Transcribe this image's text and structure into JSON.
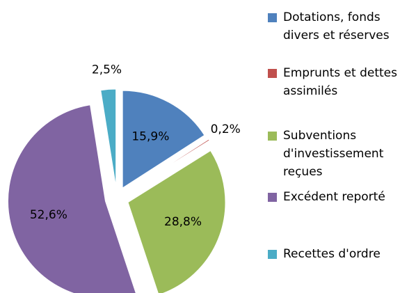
{
  "chart_data": {
    "type": "pie",
    "categories": [
      "Dotations, fonds divers et réserves",
      "Emprunts et dettes assimilés",
      "Subventions d'investissement reçues",
      "Excédent reporté",
      "Recettes d'ordre"
    ],
    "values": [
      15.9,
      0.2,
      28.8,
      52.6,
      2.5
    ],
    "value_labels": [
      "15,9%",
      "0,2%",
      "28,8%",
      "52,6%",
      "2,5%"
    ],
    "colors": [
      "#4f81bd",
      "#c0504d",
      "#9bbb59",
      "#8064a2",
      "#4bacc6"
    ],
    "legend": "right"
  }
}
